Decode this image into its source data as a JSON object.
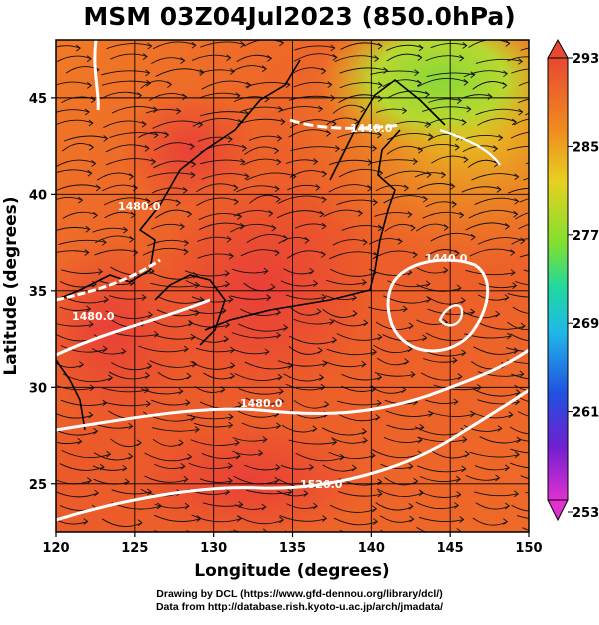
{
  "title": "MSM 03Z04Jul2023 (850.0hPa)",
  "map": {
    "lon_range": [
      120,
      150
    ],
    "lat_range": [
      22.5,
      48
    ],
    "x_axis_label": "Longitude (degrees)",
    "y_axis_label": "Latitude  (degrees)",
    "x_ticks": [
      "120",
      "125",
      "130",
      "135",
      "140",
      "145",
      "150"
    ],
    "y_ticks": [
      "25",
      "30",
      "35",
      "40",
      "45"
    ],
    "grid": true,
    "field": "temperature (shaded)",
    "contours": [
      {
        "label": "1440.0"
      },
      {
        "label": "1440.0"
      },
      {
        "label": "1480.0"
      },
      {
        "label": "1480.0"
      },
      {
        "label": "1480.0"
      },
      {
        "label": "1520.0"
      }
    ],
    "colors": {
      "warm": "#e8402a",
      "orange": "#f07a20",
      "yellow": "#e8c820",
      "green": "#90d830",
      "contour": "#ffffff",
      "coast": "#000000"
    }
  },
  "colorbar": {
    "tick_labels": [
      "293",
      "285",
      "277",
      "269",
      "261",
      "253"
    ],
    "min": 253,
    "max": 293
  },
  "credits": {
    "line1": "Drawing by DCL (https://www.gfd-dennou.org/library/dcl/)",
    "line2": "Data from http://database.rish.kyoto-u.ac.jp/arch/jmadata/"
  }
}
